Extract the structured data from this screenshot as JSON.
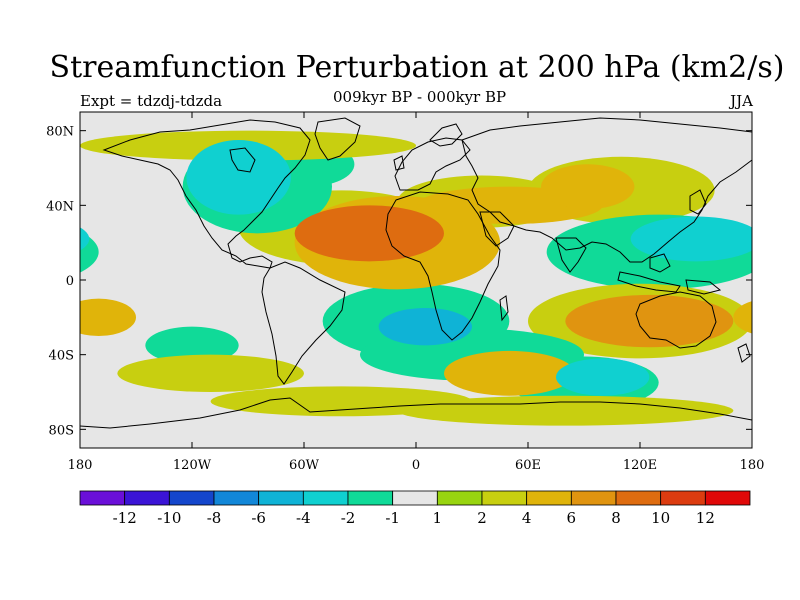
{
  "title": "Streamfunction Perturbation at 200 hPa (km2/s)",
  "subtitle_left": "Expt = tdzdj-tdzda",
  "subtitle_center": "009kyr BP - 000kyr BP",
  "subtitle_right": "JJA",
  "chart_data": {
    "type": "heatmap",
    "variable": "Streamfunction Perturbation at 200 hPa",
    "units": "km2/s",
    "season": "JJA",
    "projection": "cylindrical-equidistant",
    "xlim": [
      -180,
      180
    ],
    "ylim": [
      -90,
      90
    ],
    "x_ticks": [
      {
        "value": -180,
        "label": "180"
      },
      {
        "value": -120,
        "label": "120W"
      },
      {
        "value": -60,
        "label": "60W"
      },
      {
        "value": 0,
        "label": "0"
      },
      {
        "value": 60,
        "label": "60E"
      },
      {
        "value": 120,
        "label": "120E"
      },
      {
        "value": 180,
        "label": "180"
      }
    ],
    "y_ticks": [
      {
        "value": 80,
        "label": "80N"
      },
      {
        "value": 40,
        "label": "40N"
      },
      {
        "value": 0,
        "label": "0"
      },
      {
        "value": -40,
        "label": "40S"
      },
      {
        "value": -80,
        "label": "80S"
      }
    ],
    "colorbar": {
      "colors": [
        "#6a0fd8",
        "#3b14d6",
        "#1446cc",
        "#1287d8",
        "#0fb3d6",
        "#10d0d0",
        "#10da98",
        "#e6e6e6",
        "#98d410",
        "#c8cf10",
        "#e0b40a",
        "#e09410",
        "#de6c10",
        "#dc3c10",
        "#e00808"
      ],
      "labels": [
        "-12",
        "-10",
        "-8",
        "-6",
        "-4",
        "-2",
        "-1",
        "1",
        "2",
        "4",
        "6",
        "8",
        "10",
        "12"
      ]
    },
    "anomaly_regions": [
      {
        "lon": -25,
        "lat": 25,
        "rlon": 40,
        "rlat": 15,
        "value": 8
      },
      {
        "lon": -10,
        "lat": 20,
        "rlon": 55,
        "rlat": 25,
        "value": 4
      },
      {
        "lon": -40,
        "lat": 28,
        "rlon": 55,
        "rlat": 20,
        "value": 2
      },
      {
        "lon": 50,
        "lat": 40,
        "rlon": 50,
        "rlat": 10,
        "value": 4
      },
      {
        "lon": 35,
        "lat": 42,
        "rlon": 45,
        "rlat": 14,
        "value": 2
      },
      {
        "lon": 92,
        "lat": 50,
        "rlon": 25,
        "rlat": 12,
        "value": 4
      },
      {
        "lon": 110,
        "lat": 48,
        "rlon": 50,
        "rlat": 18,
        "value": 2
      },
      {
        "lon": -95,
        "lat": 55,
        "rlon": 28,
        "rlat": 20,
        "value": -4
      },
      {
        "lon": -85,
        "lat": 50,
        "rlon": 40,
        "rlat": 25,
        "value": -2
      },
      {
        "lon": -58,
        "lat": 62,
        "rlon": 25,
        "rlat": 12,
        "value": -2
      },
      {
        "lon": -90,
        "lat": 72,
        "rlon": 90,
        "rlat": 8,
        "value": 2
      },
      {
        "lon": 150,
        "lat": 22,
        "rlon": 35,
        "rlat": 12,
        "value": -4
      },
      {
        "lon": 130,
        "lat": 15,
        "rlon": 60,
        "rlat": 20,
        "value": -2
      },
      {
        "lon": 60,
        "lat": 8,
        "rlon": 70,
        "rlat": 14,
        "value": -1
      },
      {
        "lon": 5,
        "lat": -25,
        "rlon": 25,
        "rlat": 10,
        "value": -6
      },
      {
        "lon": 0,
        "lat": -22,
        "rlon": 50,
        "rlat": 20,
        "value": -2
      },
      {
        "lon": 125,
        "lat": -22,
        "rlon": 45,
        "rlat": 14,
        "value": 6
      },
      {
        "lon": 120,
        "lat": -22,
        "rlon": 60,
        "rlat": 20,
        "value": 2
      },
      {
        "lon": -170,
        "lat": -20,
        "rlon": 20,
        "rlat": 10,
        "value": 4
      },
      {
        "lon": -120,
        "lat": -35,
        "rlon": 25,
        "rlat": 10,
        "value": -2
      },
      {
        "lon": -65,
        "lat": -10,
        "rlon": 40,
        "rlat": 15,
        "value": -1
      },
      {
        "lon": -110,
        "lat": -50,
        "rlon": 50,
        "rlat": 10,
        "value": 2
      },
      {
        "lon": 50,
        "lat": -50,
        "rlon": 35,
        "rlat": 12,
        "value": 4
      },
      {
        "lon": 30,
        "lat": -40,
        "rlon": 60,
        "rlat": 14,
        "value": -2
      },
      {
        "lon": 100,
        "lat": -52,
        "rlon": 25,
        "rlat": 10,
        "value": -4
      },
      {
        "lon": 90,
        "lat": -55,
        "rlon": 40,
        "rlat": 14,
        "value": -2
      },
      {
        "lon": -40,
        "lat": -65,
        "rlon": 70,
        "rlat": 8,
        "value": 2
      },
      {
        "lon": 80,
        "lat": -70,
        "rlon": 90,
        "rlat": 8,
        "value": 2
      }
    ]
  }
}
